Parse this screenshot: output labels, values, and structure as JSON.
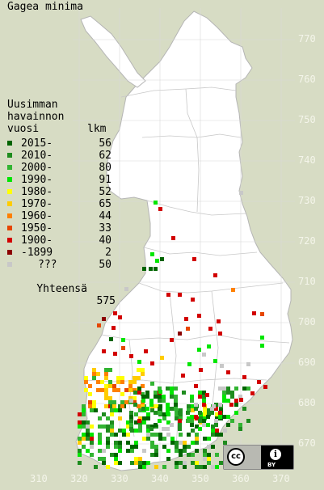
{
  "title": "Gagea minima",
  "legend": {
    "heading": [
      "Uusimman",
      "havainnon",
      "vuosi"
    ],
    "count_heading": "lkm",
    "rows": [
      {
        "label": "2015-",
        "count": "56",
        "color": "#006400"
      },
      {
        "label": "2010-",
        "count": "62",
        "color": "#1e8c1e"
      },
      {
        "label": "2000-",
        "count": "80",
        "color": "#32b432"
      },
      {
        "label": "1990-",
        "count": "91",
        "color": "#00e600"
      },
      {
        "label": "1980-",
        "count": "52",
        "color": "#ffff00"
      },
      {
        "label": "1970-",
        "count": "65",
        "color": "#ffcc00"
      },
      {
        "label": "1960-",
        "count": "44",
        "color": "#ff8000"
      },
      {
        "label": "1950-",
        "count": "33",
        "color": "#e64600"
      },
      {
        "label": "1900-",
        "count": "40",
        "color": "#d20000"
      },
      {
        "label": "-1899",
        "count": "2",
        "color": "#8c0000"
      },
      {
        "label": "???",
        "count": "50",
        "color": "#c8c8c8"
      }
    ],
    "total_label": "Yhteensä",
    "total_count": "575"
  },
  "grid_labels": {
    "north": [
      "770",
      "760",
      "750",
      "740",
      "730",
      "720",
      "710",
      "700",
      "690",
      "680",
      "670"
    ],
    "east": [
      "310",
      "320",
      "330",
      "340",
      "350",
      "360",
      "370"
    ]
  },
  "colors": {
    "background": "#d7dcc4",
    "land": "#ffffff",
    "border": "#aaaaaa"
  },
  "license_badge": {
    "cc_text": "cc",
    "by_text": "BY",
    "icon": "cc-by-icon"
  }
}
